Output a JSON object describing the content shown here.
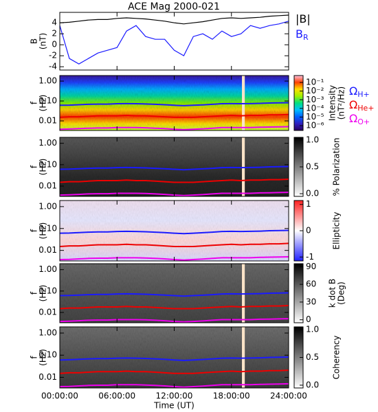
{
  "chart_data": [
    {
      "type": "line",
      "title": "ACE Mag 2000-021",
      "ylabel": "B",
      "yunit": "(nT)",
      "x": [
        0,
        1,
        2,
        3,
        4,
        5,
        6,
        7,
        8,
        9,
        10,
        11,
        12,
        13,
        14,
        15,
        16,
        17,
        18,
        19,
        20,
        21,
        22,
        23,
        24
      ],
      "xlim": [
        0,
        24
      ],
      "ylim": [
        -4.6,
        5.9
      ],
      "yticks": [
        -4,
        -2,
        0,
        2,
        4
      ],
      "series": [
        {
          "name": "|B|",
          "color": "#000000",
          "values": [
            4.0,
            4.1,
            4.3,
            4.5,
            4.6,
            4.6,
            4.8,
            4.9,
            4.8,
            4.7,
            4.5,
            4.3,
            4.0,
            3.8,
            4.0,
            4.2,
            4.5,
            4.8,
            4.9,
            4.8,
            4.9,
            5.0,
            5.2,
            5.3,
            5.4
          ]
        },
        {
          "name": "B",
          "subscript": "R",
          "color": "#1a1aff",
          "values": [
            3.5,
            -2.5,
            -3.5,
            -2.5,
            -1.5,
            -1.0,
            -0.5,
            2.5,
            3.5,
            1.5,
            1.0,
            1.0,
            -1.0,
            -2.0,
            1.5,
            2.0,
            1.0,
            2.5,
            1.5,
            2.0,
            3.5,
            3.0,
            3.5,
            3.8,
            4.3
          ]
        }
      ]
    },
    {
      "type": "spectrogram",
      "ylabel": "f",
      "yunit": "(Hz)",
      "log_scale": true,
      "ylim": [
        0.0033,
        1.9
      ],
      "yticks": [
        {
          "value": 0.01,
          "label": "0.01"
        },
        {
          "value": 0.1,
          "label": "0.10"
        },
        {
          "value": 1,
          "label": "1.00"
        }
      ],
      "data_gap": [
        19.1,
        19.4
      ],
      "colorbar": {
        "label": "Intensity",
        "unit": "(nT²/Hz)",
        "log_scale": true,
        "lim": [
          2.8e-07,
          0.63
        ],
        "ticks": [
          {
            "value": 1e-06,
            "label": "10⁻⁶"
          },
          {
            "value": 1e-05,
            "label": "10⁻⁵"
          },
          {
            "value": 0.0001,
            "label": "10⁻⁴"
          },
          {
            "value": 0.001,
            "label": "10⁻³"
          },
          {
            "value": 0.01,
            "label": "10⁻²"
          },
          {
            "value": 0.1,
            "label": "10⁻¹"
          }
        ],
        "colors": [
          "#2a0060",
          "#3020c0",
          "#0060ff",
          "#00c0ff",
          "#00e080",
          "#a0f000",
          "#ffe000",
          "#ff4000",
          "#ffc0e0"
        ]
      },
      "series": [
        {
          "name": "Ω",
          "subscript": "H+",
          "color": "#1a1aff",
          "values": [
            0.061,
            0.062,
            0.065,
            0.068,
            0.07,
            0.07,
            0.073,
            0.074,
            0.073,
            0.071,
            0.068,
            0.065,
            0.061,
            0.058,
            0.061,
            0.064,
            0.068,
            0.073,
            0.074,
            0.073,
            0.074,
            0.076,
            0.079,
            0.081,
            0.082
          ]
        },
        {
          "name": "Ω",
          "subscript": "He+",
          "color": "#ee0000",
          "values": [
            0.015,
            0.016,
            0.016,
            0.017,
            0.018,
            0.018,
            0.018,
            0.019,
            0.018,
            0.018,
            0.017,
            0.016,
            0.015,
            0.015,
            0.015,
            0.016,
            0.017,
            0.018,
            0.019,
            0.018,
            0.019,
            0.019,
            0.02,
            0.02,
            0.021
          ]
        },
        {
          "name": "Ω",
          "subscript": "O+",
          "color": "#ee00ee",
          "values": [
            0.0038,
            0.0039,
            0.0041,
            0.0043,
            0.0044,
            0.0044,
            0.0046,
            0.0046,
            0.0046,
            0.0045,
            0.0043,
            0.0041,
            0.0038,
            0.0036,
            0.0038,
            0.004,
            0.0043,
            0.0046,
            0.0046,
            0.0046,
            0.0046,
            0.0048,
            0.0049,
            0.005,
            0.0051
          ]
        }
      ]
    },
    {
      "type": "spectrogram",
      "ylabel": "f",
      "yunit": "(Hz)",
      "log_scale": true,
      "ylim": [
        0.0033,
        1.9
      ],
      "yticks": [
        {
          "value": 0.01,
          "label": "0.01"
        },
        {
          "value": 0.1,
          "label": "0.10"
        },
        {
          "value": 1,
          "label": "1.00"
        }
      ],
      "data_gap": [
        19.1,
        19.4
      ],
      "colorbar": {
        "label": "% Polarization",
        "lim": [
          -0.05,
          1.05
        ],
        "ticks": [
          {
            "value": 0,
            "label": "0.0"
          },
          {
            "value": 0.5,
            "label": "0.5"
          },
          {
            "value": 1,
            "label": "1.0"
          }
        ],
        "colors": [
          "#ffffff",
          "#000000"
        ]
      }
    },
    {
      "type": "spectrogram",
      "ylabel": "f",
      "yunit": "(Hz)",
      "log_scale": true,
      "ylim": [
        0.0033,
        1.9
      ],
      "yticks": [
        {
          "value": 0.01,
          "label": "0.01"
        },
        {
          "value": 0.1,
          "label": "0.10"
        },
        {
          "value": 1,
          "label": "1.00"
        }
      ],
      "colorbar": {
        "label": "Ellipticity",
        "lim": [
          -1.15,
          1.15
        ],
        "ticks": [
          -1,
          0,
          1
        ],
        "colors": [
          "#2020ff",
          "#ffffff",
          "#ff2020"
        ]
      }
    },
    {
      "type": "spectrogram",
      "ylabel": "f",
      "yunit": "(Hz)",
      "log_scale": true,
      "ylim": [
        0.0033,
        1.9
      ],
      "yticks": [
        {
          "value": 0.01,
          "label": "0.01"
        },
        {
          "value": 0.1,
          "label": "0.10"
        },
        {
          "value": 1,
          "label": "1.00"
        }
      ],
      "data_gap": [
        19.1,
        19.4
      ],
      "colorbar": {
        "label": "k dot B",
        "unit": "(Deg)",
        "lim": [
          -5,
          95
        ],
        "ticks": [
          0,
          30,
          60,
          90
        ],
        "colors": [
          "#ffffff",
          "#000000"
        ]
      }
    },
    {
      "type": "spectrogram",
      "ylabel": "f",
      "yunit": "(Hz)",
      "log_scale": true,
      "ylim": [
        0.0033,
        1.9
      ],
      "yticks": [
        {
          "value": 0.01,
          "label": "0.01"
        },
        {
          "value": 0.1,
          "label": "0.10"
        },
        {
          "value": 1,
          "label": "1.00"
        }
      ],
      "data_gap": [
        19.1,
        19.4
      ],
      "colorbar": {
        "label": "Coherency",
        "lim": [
          -0.05,
          1.05
        ],
        "ticks": [
          {
            "value": 0,
            "label": "0.0"
          },
          {
            "value": 0.5,
            "label": "0.5"
          },
          {
            "value": 1,
            "label": "1.0"
          }
        ],
        "colors": [
          "#ffffff",
          "#000000"
        ]
      },
      "xlabel": "Time (UT)",
      "xticks": [
        {
          "value": 0,
          "label": "00:00:00"
        },
        {
          "value": 6,
          "label": "06:00:00"
        },
        {
          "value": 12,
          "label": "12:00:00"
        },
        {
          "value": 18,
          "label": "18:00:00"
        },
        {
          "value": 24,
          "label": "24:00:00"
        }
      ]
    }
  ]
}
